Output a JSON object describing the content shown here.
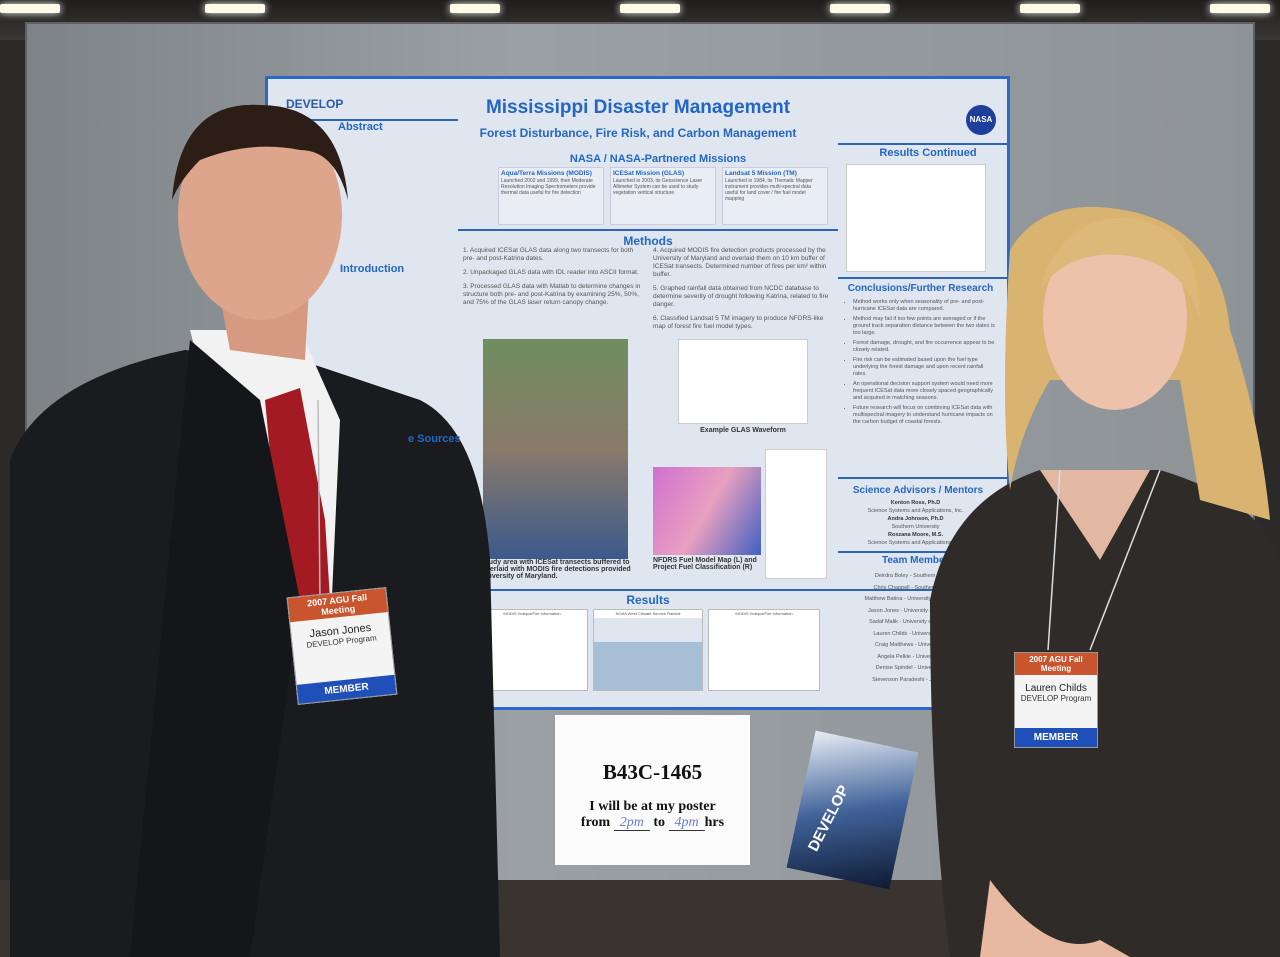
{
  "poster": {
    "logo_left": "DEVELOP",
    "title": "Mississippi Disaster Management",
    "subtitle": "Forest Disturbance, Fire Risk, and Carbon Management",
    "logo_right": "NASA",
    "left_column": {
      "abstract_heading": "Abstract",
      "introduction_heading": "Introduction",
      "data_sources_heading": "e Sources"
    },
    "missions": {
      "heading": "NASA / NASA-Partnered Missions",
      "items": [
        {
          "title": "Aqua/Terra Missions (MODIS)",
          "text": "Launched 2002 and 1999, their Moderate Resolution Imaging Spectrometers provide thermal data useful for fire detection"
        },
        {
          "title": "ICESat Mission (GLAS)",
          "text": "Launched in 2003, its Geoscience Laser Altimeter System can be used to study vegetation vertical structure"
        },
        {
          "title": "Landsat 5 Mission (TM)",
          "text": "Launched in 1984, its Thematic Mapper instrument provides multi-spectral data useful for land cover / fire fuel model mapping"
        }
      ]
    },
    "methods": {
      "heading": "Methods",
      "left": [
        "1. Acquired ICESat GLAS data along two transects for both pre- and post-Katrina dates.",
        "2. Unpackaged GLAS data with IDL reader into ASCII format.",
        "3. Processed GLAS data with Matlab to determine changes in structure both pre- and post-Katrina by examining 25%, 50%, and 75% of the GLAS laser return canopy change."
      ],
      "right": [
        "4. Acquired MODIS fire detection products processed by the University of Maryland and overlaid them on 10 km buffer of ICESat transects. Determined number of fires per km² within buffer.",
        "5. Graphed rainfall data obtained from NCDC database to determine severity of drought following Katrina, related to fire danger.",
        "6. Classified Landsat 5 TM imagery to produce NFDRS-like map of forest fire fuel model types."
      ],
      "map_caption": "Map of study area with ICESat transects buffered to 10 km, overlaid with MODIS fire detections provided by the University of Maryland.",
      "waveform_caption": "Example GLAS Waveform",
      "fuel_caption": "NFDRS Fuel Model Map (L) and Project Fuel Classification (R)"
    },
    "results": {
      "heading": "Results",
      "charts": [
        "MODIS Hotspot/Fire Information",
        "NOAA West Climate Service Rainfall",
        "MODIS Hotspot/Fire Information"
      ]
    },
    "results_continued": {
      "heading": "Results Continued"
    },
    "conclusions": {
      "heading": "Conclusions/Further Research",
      "items": [
        "Method works only when seasonality of pre- and post-hurricane ICESat data are compared.",
        "Method may fail if too few points are averaged or if the ground track separation distance between the two dates is too large.",
        "Forest damage, drought, and fire occurrence appear to be closely related.",
        "Fire risk can be estimated based upon the fuel type underlying the forest damage and upon recent rainfall rates.",
        "An operational decision support system would need more frequent ICESat data more closely spaced geographically and acquired in matching seasons.",
        "Future research will focus on combining ICESat data with multispectral imagery to understand hurricane impacts on the carbon budget of coastal forests."
      ]
    },
    "advisors": {
      "heading": "Science Advisors / Mentors",
      "items": [
        {
          "name": "Kenton Ross, Ph.D",
          "org": "Science Systems and Applications, Inc."
        },
        {
          "name": "Andra Johnson, Ph.D",
          "org": "Southern University"
        },
        {
          "name": "Roxzana Moore, M.S.",
          "org": "Science Systems and Applications, Inc."
        }
      ]
    },
    "team": {
      "heading": "Team Members",
      "items": [
        "Deirdra Boley - Southern University",
        "Chris Chappell - Southern University",
        "Matthew Batina - University of Southern Mis",
        "Jason Jones - University of Southern Mis",
        "Sadaf Malik - University of Southern Mis",
        "Lauren Childs - University of New Or",
        "Craig Matthews - University of New",
        "Angela Pelkie - University of New",
        "Denise Spindel - University of New",
        "Stevenson Paradeshi - Jackson State"
      ]
    }
  },
  "sign": {
    "code": "B43C-1465",
    "line1": "I will be at my poster",
    "from": "from",
    "start": "2pm",
    "to": "to",
    "end": "4pm",
    "hrs": "hrs"
  },
  "brochure": {
    "label": "DEVELOP"
  },
  "badges": [
    {
      "event": "2007 AGU Fall Meeting",
      "name": "Jason Jones",
      "program": "DEVELOP Program",
      "type": "MEMBER"
    },
    {
      "event": "2007 AGU Fall Meeting",
      "name": "Lauren Childs",
      "program": "DEVELOP Program",
      "type": "MEMBER"
    }
  ],
  "colors": {
    "poster_accent": "#2466c2",
    "badge_header": "#c9552e",
    "badge_member": "#1f4fb8"
  }
}
